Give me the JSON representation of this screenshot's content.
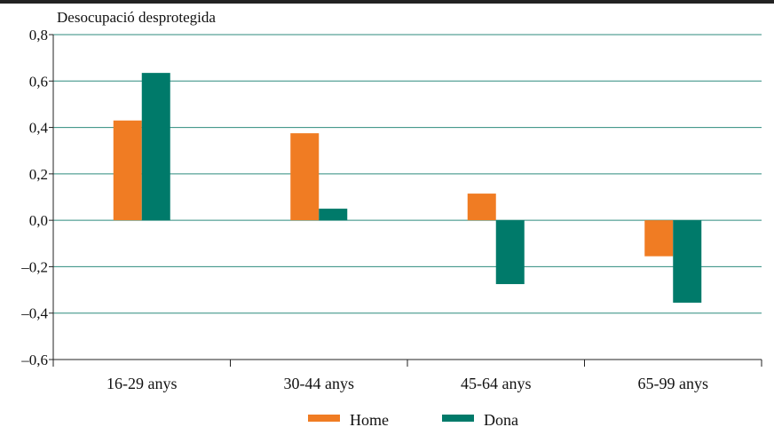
{
  "chart_data": {
    "type": "bar",
    "ylabel": "Desocupació desprotegida",
    "categories": [
      "16-29 anys",
      "30-44 anys",
      "45-64 anys",
      "65-99 anys"
    ],
    "series": [
      {
        "name": "Home",
        "color": "#f07c23",
        "values": [
          0.43,
          0.375,
          0.115,
          -0.155
        ]
      },
      {
        "name": "Dona",
        "color": "#007a6a",
        "values": [
          0.635,
          0.05,
          -0.275,
          -0.355
        ]
      }
    ],
    "ylim": [
      -0.6,
      0.8
    ],
    "yticks": [
      0.8,
      0.6,
      0.4,
      0.2,
      0.0,
      -0.2,
      -0.4,
      -0.6
    ],
    "ytick_labels": [
      "0,8",
      "0,6",
      "0,4",
      "0,2",
      "0,0",
      "–0,2",
      "–0,4",
      "–0,6"
    ],
    "grid": true,
    "gridline_color": "#2e8b7e",
    "legend_position": "bottom-center"
  }
}
